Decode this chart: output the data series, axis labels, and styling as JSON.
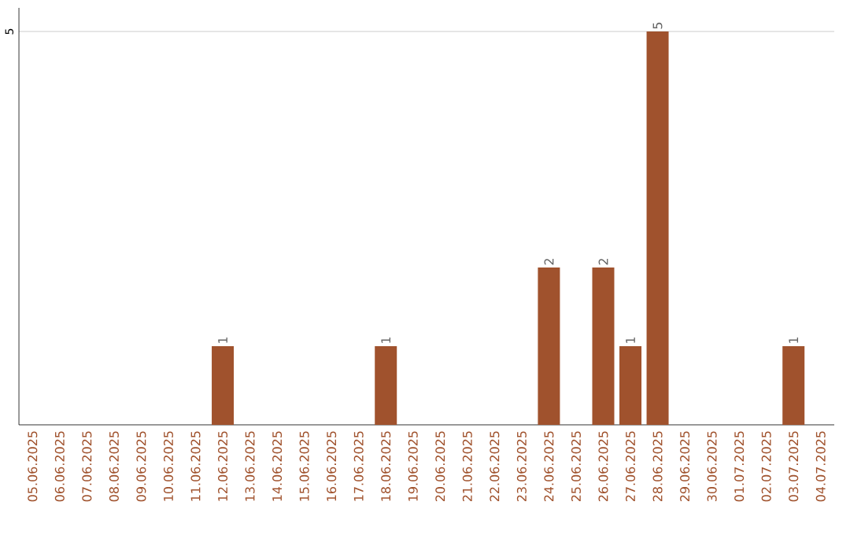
{
  "chart_data": {
    "type": "bar",
    "categories": [
      "05.06.2025",
      "06.06.2025",
      "07.06.2025",
      "08.06.2025",
      "09.06.2025",
      "10.06.2025",
      "11.06.2025",
      "12.06.2025",
      "13.06.2025",
      "14.06.2025",
      "15.06.2025",
      "16.06.2025",
      "17.06.2025",
      "18.06.2025",
      "19.06.2025",
      "20.06.2025",
      "21.06.2025",
      "22.06.2025",
      "23.06.2025",
      "24.06.2025",
      "25.06.2025",
      "26.06.2025",
      "27.06.2025",
      "28.06.2025",
      "29.06.2025",
      "30.06.2025",
      "01.07.2025",
      "02.07.2025",
      "03.07.2025",
      "04.07.2025"
    ],
    "values": [
      0,
      0,
      0,
      0,
      0,
      0,
      0,
      1,
      0,
      0,
      0,
      0,
      0,
      1,
      0,
      0,
      0,
      0,
      0,
      2,
      0,
      2,
      1,
      5,
      0,
      0,
      0,
      0,
      1,
      0
    ],
    "color": "#a0522d",
    "value_labels": [
      null,
      null,
      null,
      null,
      null,
      null,
      null,
      "1",
      null,
      null,
      null,
      null,
      null,
      "1",
      null,
      null,
      null,
      null,
      null,
      "2",
      null,
      "2",
      "1",
      "5",
      null,
      null,
      null,
      null,
      "1",
      null
    ],
    "ylim": [
      0,
      5.3
    ],
    "yticks": [
      5
    ],
    "grid": "y"
  }
}
